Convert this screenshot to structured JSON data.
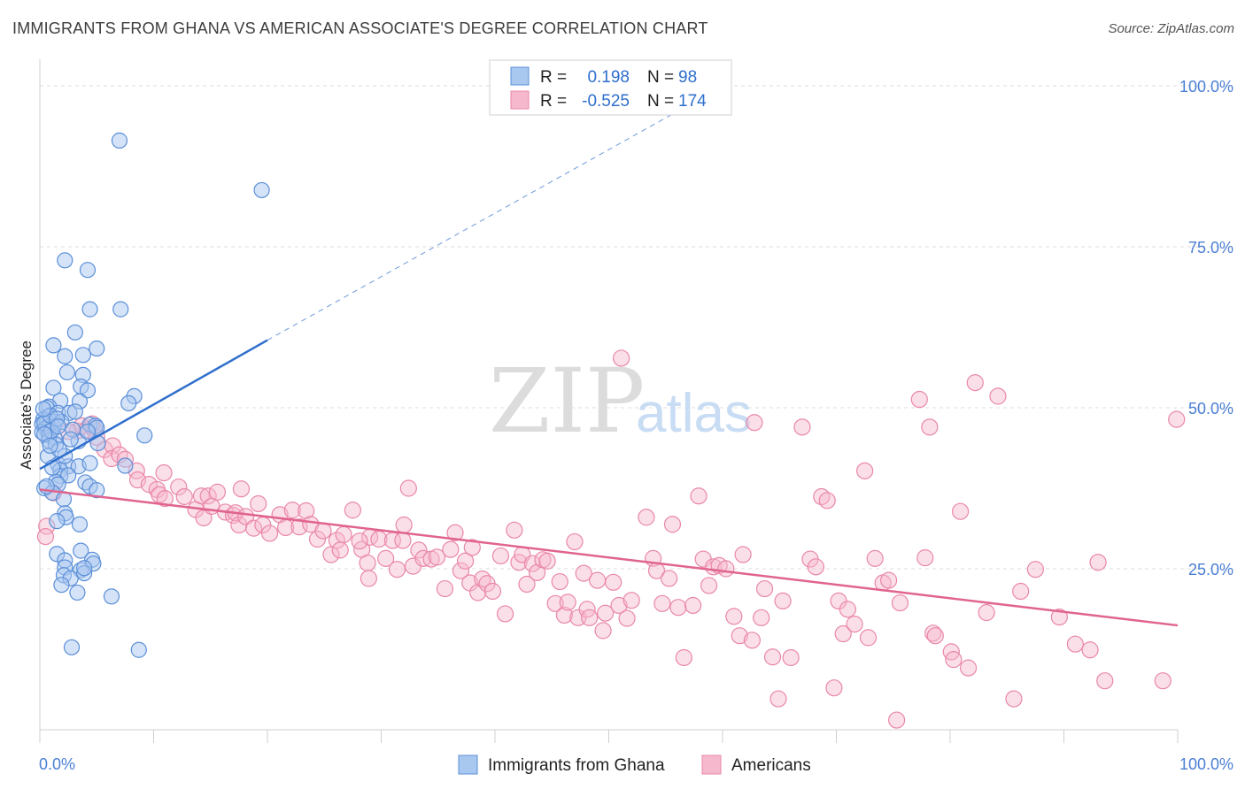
{
  "title": "IMMIGRANTS FROM GHANA VS AMERICAN ASSOCIATE'S DEGREE CORRELATION CHART",
  "source": "Source: ZipAtlas.com",
  "watermark": {
    "zip": "ZIP",
    "atlas": "atlas"
  },
  "legend": {
    "rows": [
      {
        "r_label": "R =",
        "r_value": "0.198",
        "n_label": "N =",
        "n_value": "98",
        "color": "#5b9bd5"
      },
      {
        "r_label": "R =",
        "r_value": "-0.525",
        "n_label": "N =",
        "n_value": "174",
        "color": "#ef8fb0"
      }
    ]
  },
  "colors": {
    "blue_fill": "#a9c8ef",
    "blue_stroke": "#5b8fd9",
    "blue_line": "#2f6fcd",
    "pink_fill": "#f6b8cc",
    "pink_stroke": "#e987a8",
    "pink_line": "#e0648f",
    "grid": "#dcdcdc",
    "tick_text": "#4a7fd4"
  },
  "chart_data": {
    "type": "scatter",
    "title": "IMMIGRANTS FROM GHANA VS AMERICAN ASSOCIATE'S DEGREE CORRELATION CHART",
    "xlabel": "",
    "ylabel": "Associate's Degree",
    "xlim": [
      0,
      100
    ],
    "ylim": [
      0,
      102
    ],
    "x_tick_labels": [
      "0.0%",
      "100.0%"
    ],
    "y_tick_labels": [
      "25.0%",
      "50.0%",
      "75.0%",
      "100.0%"
    ],
    "y_ticks": [
      25,
      50,
      75,
      100
    ],
    "grid": true,
    "legend_position": "top-center",
    "series": [
      {
        "name": "Immigrants from Ghana",
        "r": 0.198,
        "n": 98,
        "trend": {
          "x0": 0,
          "y0": 40.5,
          "x1": 20,
          "y1": 60.5,
          "dashed_to_x": 56,
          "dashed_to_y": 96
        },
        "points": [
          [
            7,
            91.5
          ],
          [
            19.5,
            83.8
          ],
          [
            2.2,
            72.9
          ],
          [
            4.2,
            71.4
          ],
          [
            4.4,
            65.3
          ],
          [
            7.1,
            65.3
          ],
          [
            3.1,
            61.7
          ],
          [
            1.2,
            59.7
          ],
          [
            5,
            59.2
          ],
          [
            3.8,
            58.2
          ],
          [
            2.2,
            58
          ],
          [
            2.4,
            55.5
          ],
          [
            3.8,
            55.1
          ],
          [
            1.2,
            53.1
          ],
          [
            3.6,
            53.3
          ],
          [
            4.2,
            52.7
          ],
          [
            8.3,
            51.8
          ],
          [
            1.8,
            51.1
          ],
          [
            3.5,
            51
          ],
          [
            7.8,
            50.7
          ],
          [
            0.8,
            50.2
          ],
          [
            0.6,
            50
          ],
          [
            1.6,
            49.2
          ],
          [
            2.6,
            49.2
          ],
          [
            3.1,
            49.4
          ],
          [
            0.7,
            48.6
          ],
          [
            0.3,
            48.2
          ],
          [
            0.6,
            47.9
          ],
          [
            1.3,
            47.8
          ],
          [
            0.2,
            47.5
          ],
          [
            0.8,
            47.1
          ],
          [
            1.2,
            47
          ],
          [
            4.4,
            47.4
          ],
          [
            4.9,
            47.2
          ],
          [
            5,
            46.9
          ],
          [
            0.5,
            46.8
          ],
          [
            0.7,
            46.3
          ],
          [
            0.2,
            46.2
          ],
          [
            0.8,
            45.7
          ],
          [
            9.2,
            45.7
          ],
          [
            1.3,
            45.3
          ],
          [
            0.8,
            44.9
          ],
          [
            1.4,
            44.3
          ],
          [
            3.4,
            44.8
          ],
          [
            5.1,
            44.5
          ],
          [
            0.7,
            42.5
          ],
          [
            1.6,
            41.2
          ],
          [
            2.5,
            40.9
          ],
          [
            3.4,
            40.9
          ],
          [
            4.4,
            41.4
          ],
          [
            7.5,
            41
          ],
          [
            1.8,
            40.3
          ],
          [
            1.8,
            39.4
          ],
          [
            2.5,
            39.5
          ],
          [
            1.4,
            38.5
          ],
          [
            1.6,
            38.1
          ],
          [
            4,
            38.4
          ],
          [
            4.4,
            37.8
          ],
          [
            0.4,
            37.5
          ],
          [
            1.1,
            36.8
          ],
          [
            5,
            37.2
          ],
          [
            2.1,
            35.8
          ],
          [
            2.2,
            33.6
          ],
          [
            2.3,
            33
          ],
          [
            1.5,
            32.4
          ],
          [
            3.5,
            31.9
          ],
          [
            1.5,
            27.3
          ],
          [
            3.6,
            27.8
          ],
          [
            2.2,
            26.3
          ],
          [
            4.6,
            26.4
          ],
          [
            4.7,
            25.8
          ],
          [
            2.2,
            25.2
          ],
          [
            3.6,
            24.8
          ],
          [
            2.1,
            24
          ],
          [
            2.7,
            23.5
          ],
          [
            3.9,
            24.3
          ],
          [
            1.9,
            22.5
          ],
          [
            3.3,
            21.3
          ],
          [
            6.3,
            20.7
          ],
          [
            2.8,
            12.8
          ],
          [
            8.7,
            12.4
          ],
          [
            0.4,
            47.6
          ],
          [
            0.9,
            48.8
          ],
          [
            1.9,
            47.8
          ],
          [
            2.9,
            46.6
          ],
          [
            1,
            46.4
          ],
          [
            1.5,
            48.3
          ],
          [
            0.4,
            45.9
          ],
          [
            2.7,
            45.1
          ],
          [
            1.1,
            40.7
          ],
          [
            2.2,
            42.5
          ],
          [
            0.6,
            37.8
          ],
          [
            3.9,
            25.1
          ],
          [
            1.7,
            43.5
          ],
          [
            0.3,
            49.8
          ],
          [
            0.9,
            44.1
          ],
          [
            4.2,
            46.3
          ],
          [
            1.6,
            47.1
          ]
        ]
      },
      {
        "name": "Americans",
        "r": -0.525,
        "n": 174,
        "trend": {
          "x0": 0,
          "y0": 37.3,
          "x1": 100,
          "y1": 16.2
        },
        "points": [
          [
            0.6,
            31.6
          ],
          [
            0.5,
            30
          ],
          [
            1.2,
            36.8
          ],
          [
            3.3,
            46.4
          ],
          [
            3.7,
            47.2
          ],
          [
            4.1,
            46.6
          ],
          [
            4.8,
            46.6
          ],
          [
            5,
            45.4
          ],
          [
            4.6,
            47.5
          ],
          [
            5.7,
            43.5
          ],
          [
            6.4,
            44.1
          ],
          [
            6.3,
            42.1
          ],
          [
            7,
            42.7
          ],
          [
            7.5,
            42
          ],
          [
            8.5,
            40.2
          ],
          [
            8.6,
            38.8
          ],
          [
            9.6,
            38.1
          ],
          [
            10.3,
            37.3
          ],
          [
            10.5,
            36.5
          ],
          [
            10.9,
            39.9
          ],
          [
            11,
            35.9
          ],
          [
            12.2,
            37.7
          ],
          [
            12.7,
            36.2
          ],
          [
            13.7,
            34.2
          ],
          [
            14.2,
            36.3
          ],
          [
            14.4,
            32.9
          ],
          [
            14.8,
            36.3
          ],
          [
            15.1,
            34.7
          ],
          [
            15.6,
            36.9
          ],
          [
            16.3,
            33.8
          ],
          [
            17,
            33.3
          ],
          [
            17.2,
            33.7
          ],
          [
            17.5,
            31.8
          ],
          [
            17.7,
            37.4
          ],
          [
            18.1,
            33.1
          ],
          [
            18.8,
            31.3
          ],
          [
            19.2,
            35.1
          ],
          [
            19.6,
            31.8
          ],
          [
            20.2,
            30.5
          ],
          [
            21.1,
            33.4
          ],
          [
            21.6,
            31.4
          ],
          [
            22.2,
            34.1
          ],
          [
            22.8,
            31.5
          ],
          [
            23.4,
            34
          ],
          [
            23.8,
            31.9
          ],
          [
            24.4,
            29.6
          ],
          [
            24.9,
            30.9
          ],
          [
            25.6,
            27.2
          ],
          [
            26.1,
            29.4
          ],
          [
            26.4,
            27.9
          ],
          [
            26.7,
            30.3
          ],
          [
            27.5,
            34.1
          ],
          [
            28.3,
            28
          ],
          [
            28.8,
            25.9
          ],
          [
            29,
            29.9
          ],
          [
            28.1,
            29.3
          ],
          [
            28.9,
            23.5
          ],
          [
            29.8,
            29.6
          ],
          [
            30.4,
            26.6
          ],
          [
            31,
            29.4
          ],
          [
            31.4,
            24.9
          ],
          [
            31.9,
            29.4
          ],
          [
            32,
            31.8
          ],
          [
            32.4,
            37.5
          ],
          [
            32.8,
            25.4
          ],
          [
            33.3,
            27.9
          ],
          [
            33.7,
            26.6
          ],
          [
            34.4,
            26.5
          ],
          [
            34.9,
            26.8
          ],
          [
            35.6,
            21.9
          ],
          [
            36.1,
            28
          ],
          [
            36.5,
            30.6
          ],
          [
            37,
            24.7
          ],
          [
            37.4,
            26.2
          ],
          [
            37.8,
            22.8
          ],
          [
            38,
            28.3
          ],
          [
            38.5,
            21.3
          ],
          [
            38.9,
            23.4
          ],
          [
            39.3,
            22.7
          ],
          [
            39.8,
            21.5
          ],
          [
            40.5,
            27
          ],
          [
            40.9,
            18
          ],
          [
            41.7,
            31
          ],
          [
            42.1,
            26
          ],
          [
            42.4,
            27.2
          ],
          [
            42.8,
            22.6
          ],
          [
            43.3,
            25.8
          ],
          [
            43.7,
            24.4
          ],
          [
            44.2,
            26.4
          ],
          [
            44.6,
            26.2
          ],
          [
            45.3,
            19.6
          ],
          [
            45.7,
            23
          ],
          [
            46.1,
            17.8
          ],
          [
            46.4,
            19.8
          ],
          [
            47,
            29.2
          ],
          [
            47.3,
            17.4
          ],
          [
            47.8,
            24.3
          ],
          [
            48.1,
            18.7
          ],
          [
            48.3,
            17.4
          ],
          [
            49,
            23.2
          ],
          [
            49.5,
            15.4
          ],
          [
            49.7,
            18.1
          ],
          [
            50.4,
            22.9
          ],
          [
            50.9,
            19.3
          ],
          [
            51.1,
            57.7
          ],
          [
            51.6,
            17.3
          ],
          [
            52,
            20.1
          ],
          [
            53.3,
            33
          ],
          [
            53.9,
            26.6
          ],
          [
            54.2,
            24.7
          ],
          [
            54.7,
            19.6
          ],
          [
            55.3,
            23.5
          ],
          [
            55.6,
            31.9
          ],
          [
            56.1,
            19
          ],
          [
            56.6,
            11.2
          ],
          [
            57.4,
            19.3
          ],
          [
            57.9,
            36.3
          ],
          [
            58.3,
            26.5
          ],
          [
            58.8,
            22.4
          ],
          [
            59.2,
            25.3
          ],
          [
            59.7,
            25.5
          ],
          [
            60.3,
            25
          ],
          [
            61,
            17.6
          ],
          [
            61.5,
            14.6
          ],
          [
            61.8,
            27.2
          ],
          [
            62.6,
            13.9
          ],
          [
            62.8,
            47.7
          ],
          [
            63.4,
            17.4
          ],
          [
            63.7,
            21.9
          ],
          [
            64.4,
            11.3
          ],
          [
            64.9,
            4.8
          ],
          [
            65.3,
            20
          ],
          [
            66,
            11.2
          ],
          [
            67,
            47
          ],
          [
            67.7,
            26.5
          ],
          [
            68.2,
            25.3
          ],
          [
            68.7,
            36.2
          ],
          [
            69.2,
            35.6
          ],
          [
            69.8,
            6.5
          ],
          [
            70.2,
            20
          ],
          [
            70.6,
            14.9
          ],
          [
            71,
            18.7
          ],
          [
            71.6,
            16.4
          ],
          [
            72.5,
            40.2
          ],
          [
            72.8,
            14.3
          ],
          [
            73.4,
            26.6
          ],
          [
            74.1,
            22.8
          ],
          [
            74.6,
            23.2
          ],
          [
            75.3,
            1.5
          ],
          [
            75.6,
            19.7
          ],
          [
            77.3,
            51.3
          ],
          [
            77.8,
            26.7
          ],
          [
            78.2,
            47
          ],
          [
            78.5,
            15
          ],
          [
            78.7,
            14.6
          ],
          [
            80.1,
            12.1
          ],
          [
            80.3,
            10.9
          ],
          [
            80.9,
            33.9
          ],
          [
            81.6,
            9.6
          ],
          [
            82.2,
            53.9
          ],
          [
            83.2,
            18.2
          ],
          [
            84.2,
            51.8
          ],
          [
            85.6,
            4.8
          ],
          [
            86.2,
            21.5
          ],
          [
            87.5,
            24.9
          ],
          [
            89.6,
            17.5
          ],
          [
            91,
            13.3
          ],
          [
            92.3,
            12.4
          ],
          [
            93,
            26
          ],
          [
            93.6,
            7.6
          ],
          [
            98.7,
            7.6
          ],
          [
            99.9,
            48.2
          ],
          [
            0.8,
            47.1
          ],
          [
            2.5,
            46.3
          ]
        ]
      }
    ]
  },
  "bottom_legend": {
    "items": [
      {
        "label": "Immigrants from Ghana"
      },
      {
        "label": "Americans"
      }
    ]
  }
}
